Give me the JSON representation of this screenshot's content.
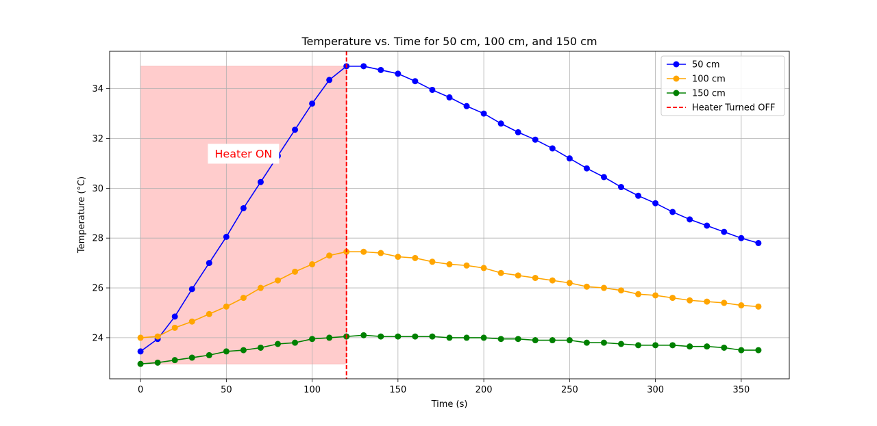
{
  "chart_data": {
    "type": "line",
    "title": "Temperature vs. Time for 50 cm, 100 cm, and 150 cm",
    "xlabel": "Time (s)",
    "ylabel": "Temperature (°C)",
    "xlim": [
      -18,
      378
    ],
    "ylim": [
      22.35,
      35.5
    ],
    "xticks": [
      0,
      50,
      100,
      150,
      200,
      250,
      300,
      350
    ],
    "yticks": [
      24,
      26,
      28,
      30,
      32,
      34
    ],
    "grid": true,
    "legend_position": "top-right",
    "x": [
      0,
      10,
      20,
      30,
      40,
      50,
      60,
      70,
      80,
      90,
      100,
      110,
      120,
      130,
      140,
      150,
      160,
      170,
      180,
      190,
      200,
      210,
      220,
      230,
      240,
      250,
      260,
      270,
      280,
      290,
      300,
      310,
      320,
      330,
      340,
      350,
      360
    ],
    "series": [
      {
        "name": "50 cm",
        "color": "#0000ff",
        "values": [
          23.45,
          23.95,
          24.85,
          25.95,
          27.0,
          28.05,
          29.2,
          30.25,
          31.3,
          32.35,
          33.4,
          34.35,
          34.9,
          34.9,
          34.75,
          34.6,
          34.3,
          33.95,
          33.65,
          33.3,
          33.0,
          32.6,
          32.25,
          31.95,
          31.6,
          31.2,
          30.8,
          30.45,
          30.05,
          29.7,
          29.4,
          29.05,
          28.75,
          28.5,
          28.25,
          28.0,
          27.8
        ]
      },
      {
        "name": "100 cm",
        "color": "#ffa500",
        "values": [
          24.0,
          24.05,
          24.4,
          24.65,
          24.95,
          25.25,
          25.6,
          26.0,
          26.3,
          26.65,
          26.95,
          27.3,
          27.45,
          27.45,
          27.4,
          27.25,
          27.2,
          27.05,
          26.95,
          26.9,
          26.8,
          26.6,
          26.5,
          26.4,
          26.3,
          26.2,
          26.05,
          26.0,
          25.9,
          25.75,
          25.7,
          25.6,
          25.5,
          25.45,
          25.4,
          25.3,
          25.25
        ]
      },
      {
        "name": "150 cm",
        "color": "#008000",
        "values": [
          22.95,
          23.0,
          23.1,
          23.2,
          23.3,
          23.45,
          23.5,
          23.6,
          23.75,
          23.8,
          23.95,
          24.0,
          24.05,
          24.1,
          24.05,
          24.05,
          24.05,
          24.05,
          24.0,
          24.0,
          24.0,
          23.95,
          23.95,
          23.9,
          23.9,
          23.9,
          23.8,
          23.8,
          23.75,
          23.7,
          23.7,
          23.7,
          23.65,
          23.65,
          23.6,
          23.5,
          23.5
        ]
      }
    ],
    "vline": {
      "x": 120,
      "label": "Heater Turned OFF",
      "color": "#ff0000"
    },
    "shaded_region": {
      "x0": 0,
      "x1": 120,
      "y0": 22.95,
      "y1": 34.9,
      "color": "#ffcccc"
    },
    "annotation": {
      "text": "Heater ON",
      "x": 60,
      "y": 31.4,
      "color": "#ff0000"
    }
  }
}
